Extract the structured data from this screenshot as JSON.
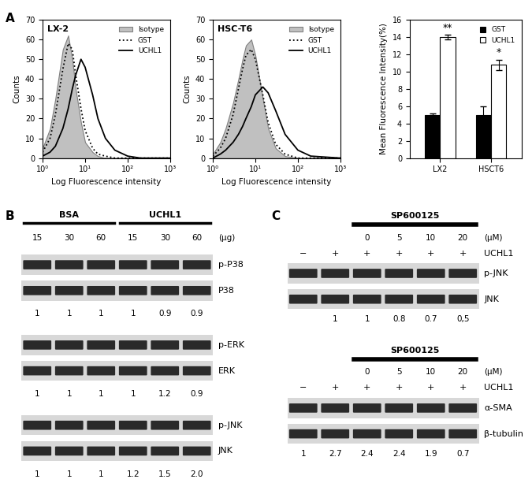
{
  "chart_data": [
    {
      "type": "line",
      "title": "LX-2",
      "label": "A",
      "x_label": "Log Fluorescence intensity",
      "y_label": "Counts",
      "log": "x",
      "legend": "upper right",
      "x": [
        1,
        1.5,
        2,
        3,
        4,
        5,
        6,
        8,
        10,
        15,
        20,
        30,
        50,
        100,
        200,
        1000
      ],
      "series": [
        {
          "name": "Isotype",
          "type": "area",
          "color": "#c0c0c0",
          "values": [
            5,
            15,
            30,
            55,
            62,
            50,
            35,
            18,
            8,
            3,
            1,
            0,
            0,
            0,
            0,
            0
          ]
        },
        {
          "name": "GST",
          "type": "line",
          "color": "#000000",
          "line_style": "dotted",
          "values": [
            3,
            10,
            22,
            45,
            58,
            55,
            42,
            25,
            14,
            5,
            2,
            1,
            0,
            0,
            0,
            0
          ]
        },
        {
          "name": "UCHL1",
          "type": "line",
          "color": "#000000",
          "line_style": "solid",
          "values": [
            1,
            3,
            6,
            15,
            25,
            35,
            42,
            50,
            46,
            32,
            20,
            10,
            4,
            1,
            0,
            0
          ]
        }
      ],
      "xlim": [
        1,
        1000
      ],
      "xticks": [
        {
          "value": 1,
          "label": "10⁰"
        },
        {
          "value": 10,
          "label": "10¹"
        },
        {
          "value": 100,
          "label": "10²"
        },
        {
          "value": 1000,
          "label": "10³"
        }
      ],
      "ylim": [
        0,
        70
      ],
      "yticks": [
        0,
        10,
        20,
        30,
        40,
        50,
        60,
        70
      ]
    },
    {
      "type": "line",
      "title": "HSC-T6",
      "x_label": "Log Fluorescence intensity",
      "y_label": "Counts",
      "log": "x",
      "legend": "upper right",
      "x": [
        1,
        1.5,
        2,
        3,
        4,
        5,
        6,
        8,
        10,
        15,
        20,
        30,
        50,
        100,
        200,
        1000
      ],
      "series": [
        {
          "name": "Isotype",
          "type": "area",
          "color": "#c0c0c0",
          "values": [
            2,
            8,
            15,
            28,
            40,
            50,
            57,
            60,
            52,
            30,
            15,
            5,
            1,
            0,
            0,
            0
          ]
        },
        {
          "name": "GST",
          "type": "line",
          "color": "#000000",
          "line_style": "dotted",
          "values": [
            1,
            5,
            10,
            22,
            35,
            45,
            52,
            55,
            50,
            32,
            18,
            7,
            2,
            0,
            0,
            0
          ]
        },
        {
          "name": "UCHL1",
          "type": "line",
          "color": "#000000",
          "line_style": "solid",
          "values": [
            0,
            2,
            4,
            8,
            12,
            16,
            20,
            26,
            32,
            36,
            33,
            24,
            12,
            4,
            1,
            0
          ]
        }
      ],
      "xlim": [
        1,
        1000
      ],
      "xticks": [
        {
          "value": 1,
          "label": "10⁰"
        },
        {
          "value": 10,
          "label": "10¹"
        },
        {
          "value": 100,
          "label": "10²"
        },
        {
          "value": 1000,
          "label": "10³"
        }
      ],
      "ylim": [
        0,
        70
      ],
      "yticks": [
        0,
        10,
        20,
        30,
        40,
        50,
        60,
        70
      ]
    },
    {
      "type": "bar",
      "y_label": "Mean Fluorescence Intensity(%)",
      "legend": "upper right",
      "categories": [
        "LX2",
        "HSCT6"
      ],
      "series": [
        {
          "name": "GST",
          "color": "#000000",
          "values": [
            5,
            5
          ],
          "errors": [
            0.15,
            1.0
          ]
        },
        {
          "name": "UCHL1",
          "color": "#ffffff",
          "values": [
            14,
            10.8
          ],
          "errors": [
            0.3,
            0.6
          ]
        }
      ],
      "annotations": [
        {
          "text": "**",
          "category": "LX2",
          "series": "UCHL1"
        },
        {
          "text": "*",
          "category": "HSCT6",
          "series": "UCHL1"
        }
      ],
      "ylim": [
        0,
        16
      ],
      "yticks": [
        0,
        2,
        4,
        6,
        8,
        10,
        12,
        14,
        16
      ]
    }
  ],
  "panel_B": {
    "label": "B",
    "groups": [
      "BSA",
      "UCHL1"
    ],
    "doses": [
      "15",
      "30",
      "60",
      "15",
      "30",
      "60"
    ],
    "dose_unit": "(μg)",
    "blots": [
      {
        "rows": [
          "p-P38",
          "P38"
        ],
        "quantification": [
          "1",
          "1",
          "1",
          "1",
          "0.9",
          "0.9"
        ]
      },
      {
        "rows": [
          "p-ERK",
          "ERK"
        ],
        "quantification": [
          "1",
          "1",
          "1",
          "1",
          "1.2",
          "0.9"
        ]
      },
      {
        "rows": [
          "p-JNK",
          "JNK"
        ],
        "quantification": [
          "1",
          "1",
          "1",
          "1.2",
          "1.5",
          "2.0"
        ]
      }
    ]
  },
  "panel_C": {
    "label": "C",
    "blots": [
      {
        "treatment": "SP600125",
        "doses": [
          null,
          null,
          "0",
          "5",
          "10",
          "20"
        ],
        "dose_unit": "(μM)",
        "condition": "UCHL1",
        "condition_marks": [
          "−",
          "+",
          "+",
          "+",
          "+",
          "+"
        ],
        "rows": [
          "p-JNK",
          "JNK"
        ],
        "quantification": [
          null,
          "1",
          "1",
          "0.8",
          "0.7",
          "0,5"
        ]
      },
      {
        "treatment": "SP600125",
        "doses": [
          null,
          null,
          "0",
          "5",
          "10",
          "20"
        ],
        "dose_unit": "(μM)",
        "condition": "UCHL1",
        "condition_marks": [
          "−",
          "+",
          "+",
          "+",
          "+",
          "+"
        ],
        "rows": [
          "α-SMA",
          "β-tubulin"
        ],
        "quantification": [
          "1",
          "2.7",
          "2.4",
          "2.4",
          "1.9",
          "0.7"
        ]
      }
    ]
  }
}
